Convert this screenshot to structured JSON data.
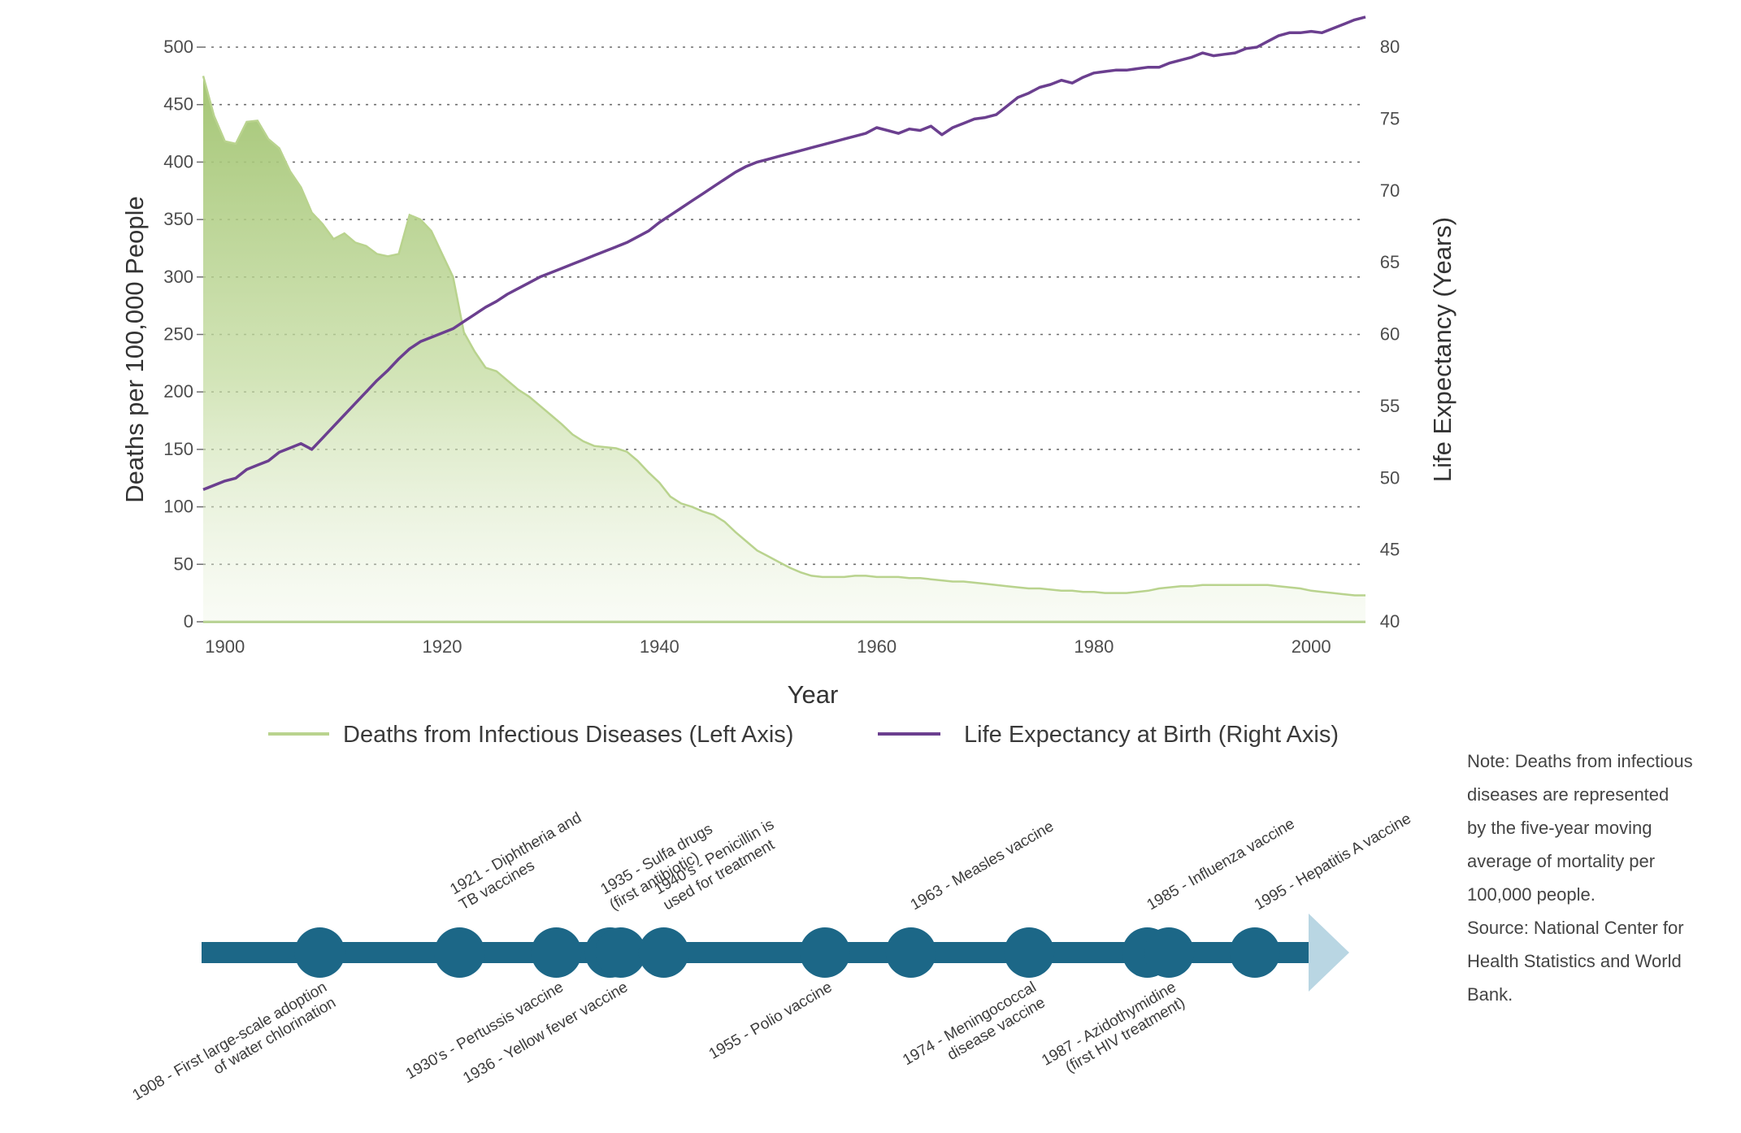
{
  "chart_data": {
    "type": "area",
    "xlabel": "Year",
    "x_ticks": [
      "1900",
      "1920",
      "1940",
      "1960",
      "1980",
      "2000"
    ],
    "x_range": [
      1898,
      2005
    ],
    "y_left": {
      "label": "Deaths per 100,000 People",
      "ticks": [
        "0",
        "50",
        "100",
        "150",
        "200",
        "250",
        "300",
        "350",
        "400",
        "450",
        "500"
      ],
      "range": [
        0,
        500
      ]
    },
    "y_right": {
      "label": "Life Expectancy (Years)",
      "ticks": [
        "40",
        "45",
        "50",
        "55",
        "60",
        "65",
        "70",
        "75",
        "80"
      ],
      "range": [
        40,
        80
      ]
    },
    "grid": "horizontal dotted",
    "series": [
      {
        "name": "Deaths from Infectious Diseases (Left Axis)",
        "axis": "left",
        "style": "filled area",
        "color": "#b9d38e",
        "x": [
          1898,
          1899,
          1900,
          1901,
          1902,
          1903,
          1904,
          1905,
          1906,
          1907,
          1908,
          1909,
          1910,
          1911,
          1912,
          1913,
          1914,
          1915,
          1916,
          1917,
          1918,
          1919,
          1920,
          1921,
          1922,
          1923,
          1924,
          1925,
          1926,
          1927,
          1928,
          1929,
          1930,
          1931,
          1932,
          1933,
          1934,
          1935,
          1936,
          1937,
          1938,
          1939,
          1940,
          1941,
          1942,
          1943,
          1944,
          1945,
          1946,
          1947,
          1948,
          1949,
          1950,
          1951,
          1952,
          1953,
          1954,
          1955,
          1956,
          1957,
          1958,
          1959,
          1960,
          1961,
          1962,
          1963,
          1964,
          1965,
          1966,
          1967,
          1968,
          1969,
          1970,
          1971,
          1972,
          1973,
          1974,
          1975,
          1976,
          1977,
          1978,
          1979,
          1980,
          1981,
          1982,
          1983,
          1984,
          1985,
          1986,
          1987,
          1988,
          1989,
          1990,
          1991,
          1992,
          1993,
          1994,
          1995,
          1996,
          1997,
          1998,
          1999,
          2000,
          2001,
          2002,
          2003,
          2004,
          2005
        ],
        "values": [
          475,
          440,
          418,
          416,
          435,
          436,
          420,
          412,
          392,
          378,
          356,
          346,
          333,
          338,
          330,
          327,
          320,
          318,
          320,
          354,
          350,
          340,
          320,
          300,
          252,
          235,
          221,
          218,
          210,
          202,
          196,
          188,
          180,
          172,
          163,
          157,
          153,
          152,
          151,
          148,
          140,
          130,
          121,
          109,
          103,
          100,
          96,
          93,
          87,
          78,
          70,
          62,
          57,
          52,
          47,
          43,
          40,
          39,
          39,
          39,
          40,
          40,
          39,
          39,
          39,
          38,
          38,
          37,
          36,
          35,
          35,
          34,
          33,
          32,
          31,
          30,
          29,
          29,
          28,
          27,
          27,
          26,
          26,
          25,
          25,
          25,
          26,
          27,
          29,
          30,
          31,
          31,
          32,
          32,
          32,
          32,
          32,
          32,
          32,
          31,
          30,
          29,
          27,
          26,
          25,
          24,
          23,
          23
        ]
      },
      {
        "name": "Life Expectancy at Birth (Right Axis)",
        "axis": "right",
        "style": "line",
        "color": "#6b3f8f",
        "x": [
          1898,
          1900,
          1901,
          1902,
          1903,
          1904,
          1905,
          1906,
          1907,
          1908,
          1909,
          1910,
          1911,
          1912,
          1913,
          1914,
          1915,
          1916,
          1917,
          1918,
          1919,
          1920,
          1921,
          1922,
          1923,
          1924,
          1925,
          1926,
          1927,
          1928,
          1929,
          1930,
          1931,
          1932,
          1933,
          1934,
          1935,
          1936,
          1937,
          1938,
          1939,
          1940,
          1941,
          1942,
          1943,
          1944,
          1945,
          1946,
          1947,
          1948,
          1949,
          1950,
          1951,
          1952,
          1953,
          1954,
          1955,
          1956,
          1957,
          1958,
          1959,
          1960,
          1961,
          1962,
          1963,
          1964,
          1965,
          1966,
          1967,
          1968,
          1969,
          1970,
          1971,
          1972,
          1973,
          1974,
          1975,
          1976,
          1977,
          1978,
          1979,
          1980,
          1981,
          1982,
          1983,
          1984,
          1985,
          1986,
          1987,
          1988,
          1989,
          1990,
          1991,
          1992,
          1993,
          1994,
          1995,
          1996,
          1997,
          1998,
          1999,
          2000,
          2001,
          2002,
          2003,
          2004,
          2005
        ],
        "values": [
          49.2,
          49.8,
          50.0,
          50.6,
          50.9,
          51.2,
          51.8,
          52.1,
          52.4,
          52.0,
          52.8,
          53.6,
          54.4,
          55.2,
          56.0,
          56.8,
          57.5,
          58.3,
          59.0,
          59.5,
          59.8,
          60.1,
          60.4,
          60.9,
          61.4,
          61.9,
          62.3,
          62.8,
          63.2,
          63.6,
          64.0,
          64.3,
          64.6,
          64.9,
          65.2,
          65.5,
          65.8,
          66.1,
          66.4,
          66.8,
          67.2,
          67.8,
          68.3,
          68.8,
          69.3,
          69.8,
          70.3,
          70.8,
          71.3,
          71.7,
          72.0,
          72.2,
          72.4,
          72.6,
          72.8,
          73.0,
          73.2,
          73.4,
          73.6,
          73.8,
          74.0,
          74.4,
          74.2,
          74.0,
          74.3,
          74.2,
          74.5,
          73.9,
          74.4,
          74.7,
          75.0,
          75.1,
          75.3,
          75.9,
          76.5,
          76.8,
          77.2,
          77.4,
          77.7,
          77.5,
          77.9,
          78.2,
          78.3,
          78.4,
          78.4,
          78.5,
          78.6,
          78.6,
          78.9,
          79.1,
          79.3,
          79.6,
          79.4,
          79.5,
          79.6,
          79.9,
          80.0,
          80.4,
          80.8,
          81.0,
          81.0,
          81.1,
          81.0,
          81.3,
          81.6,
          81.9,
          82.1
        ]
      }
    ]
  },
  "timeline": {
    "events": [
      {
        "year": 1908,
        "label": "1908 - First large-scale adoption of water chlorination",
        "position": "below"
      },
      {
        "year": 1921,
        "label": "1921 - Diphtheria and TB vaccines",
        "position": "above"
      },
      {
        "year": 1930,
        "label": "1930's - Pertussis vaccine",
        "position": "below"
      },
      {
        "year": 1935,
        "label": "1935 - Sulfa drugs (first antibiotic)",
        "position": "above"
      },
      {
        "year": 1936,
        "label": "1936 - Yellow fever vaccine",
        "position": "below"
      },
      {
        "year": 1940,
        "label": "1940's - Penicillin is used for treatment",
        "position": "above"
      },
      {
        "year": 1955,
        "label": "1955 - Polio vaccine",
        "position": "below"
      },
      {
        "year": 1963,
        "label": "1963 - Measles vaccine",
        "position": "above"
      },
      {
        "year": 1974,
        "label": "1974 - Meningococcal disease vaccine",
        "position": "below"
      },
      {
        "year": 1985,
        "label": "1985 - Influenza vaccine",
        "position": "above"
      },
      {
        "year": 1987,
        "label": "1987 - Azidothymidine (first HIV treatment)",
        "position": "below"
      },
      {
        "year": 1995,
        "label": "1995 - Hepatitis A vaccine",
        "position": "above"
      }
    ],
    "bar_color": "#1c6787",
    "arrow_color": "#b9d6e3"
  },
  "note": {
    "lines": [
      "Note: Deaths from infectious",
      "diseases are represented",
      "by the five-year moving",
      "average of mortality per",
      "100,000 people.",
      "Source: National Center for",
      "Health Statistics and World",
      "Bank."
    ]
  }
}
